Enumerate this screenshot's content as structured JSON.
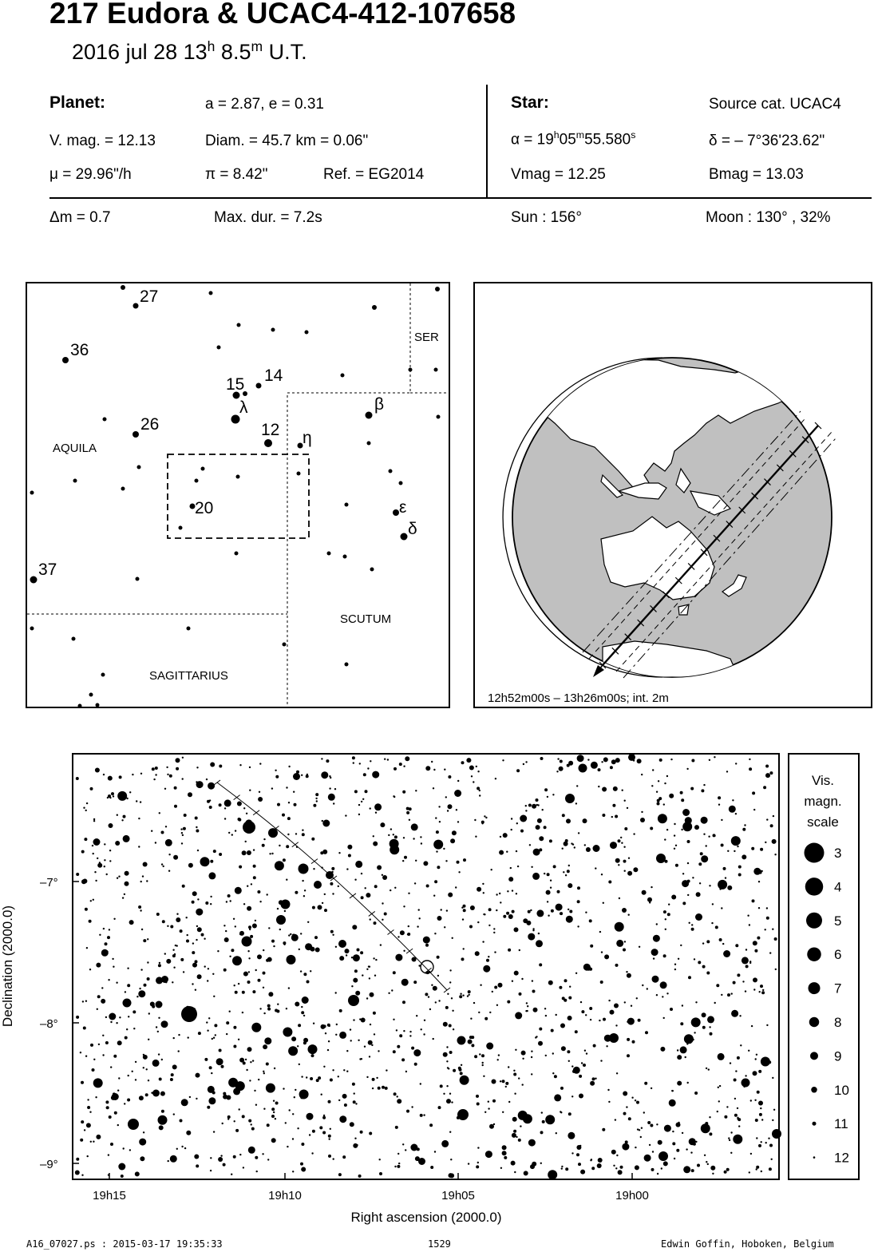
{
  "header": {
    "title": "217 Eudora  &  UCAC4-412-107658",
    "date_prefix": "2016 jul 28  13",
    "hour_unit": "h",
    "minutes": " 8.5",
    "minute_unit": "m",
    "time_suffix": " U.T."
  },
  "planet": {
    "heading": "Planet:",
    "orbit": "a = 2.87, e = 0.31",
    "vmag": "V. mag. = 12.13",
    "diam": "Diam. = 45.7 km = 0.06\"",
    "mu": "μ =  29.96\"/h",
    "pi": "π =  8.42\"",
    "ref": "Ref. = EG2014"
  },
  "star": {
    "heading": "Star:",
    "source": "Source cat.  UCAC4",
    "alpha_prefix": "α = 19",
    "alpha_h": "h",
    "alpha_min": "05",
    "alpha_m": "m",
    "alpha_sec": "55.580",
    "alpha_s": "s",
    "delta": "δ = – 7°36'23.62\"",
    "vmag": "Vmag = 12.25",
    "bmag": "Bmag = 13.03"
  },
  "event": {
    "dm": "Δm = 0.7",
    "maxdur": "Max. dur. = 7.2s",
    "sun": "Sun : 156°",
    "moon": "Moon : 130° , 32%"
  },
  "finder": {
    "constellations": [
      "AQUILA",
      "SER",
      "SCUTUM",
      "SAGITTARIUS"
    ],
    "star_labels": [
      "27",
      "36",
      "15",
      "14",
      "λ",
      "26",
      "12",
      "η",
      "β",
      "20",
      "ε",
      "δ",
      "37"
    ]
  },
  "globe": {
    "caption": "12h52m00s – 13h26m00s; int.  2m",
    "ocean_color": "#ffffff",
    "land_color": "#c0c0c0"
  },
  "starchart": {
    "ylabel": "Declination (2000.0)",
    "xlabel": "Right ascension (2000.0)",
    "yticks": [
      "–7°",
      "–8°",
      "–9°"
    ],
    "xticks": [
      "19h15",
      "19h10",
      "19h05",
      "19h00"
    ],
    "scale_title": [
      "Vis.",
      "magn.",
      "scale"
    ],
    "scale_mags": [
      "3",
      "4",
      "5",
      "6",
      "7",
      "8",
      "9",
      "10",
      "11",
      "12"
    ]
  },
  "footer": {
    "file": "A16_07027.ps : 2015-03-17 19:35:33",
    "number": "1529",
    "author": "Edwin Goffin, Hoboken, Belgium"
  }
}
